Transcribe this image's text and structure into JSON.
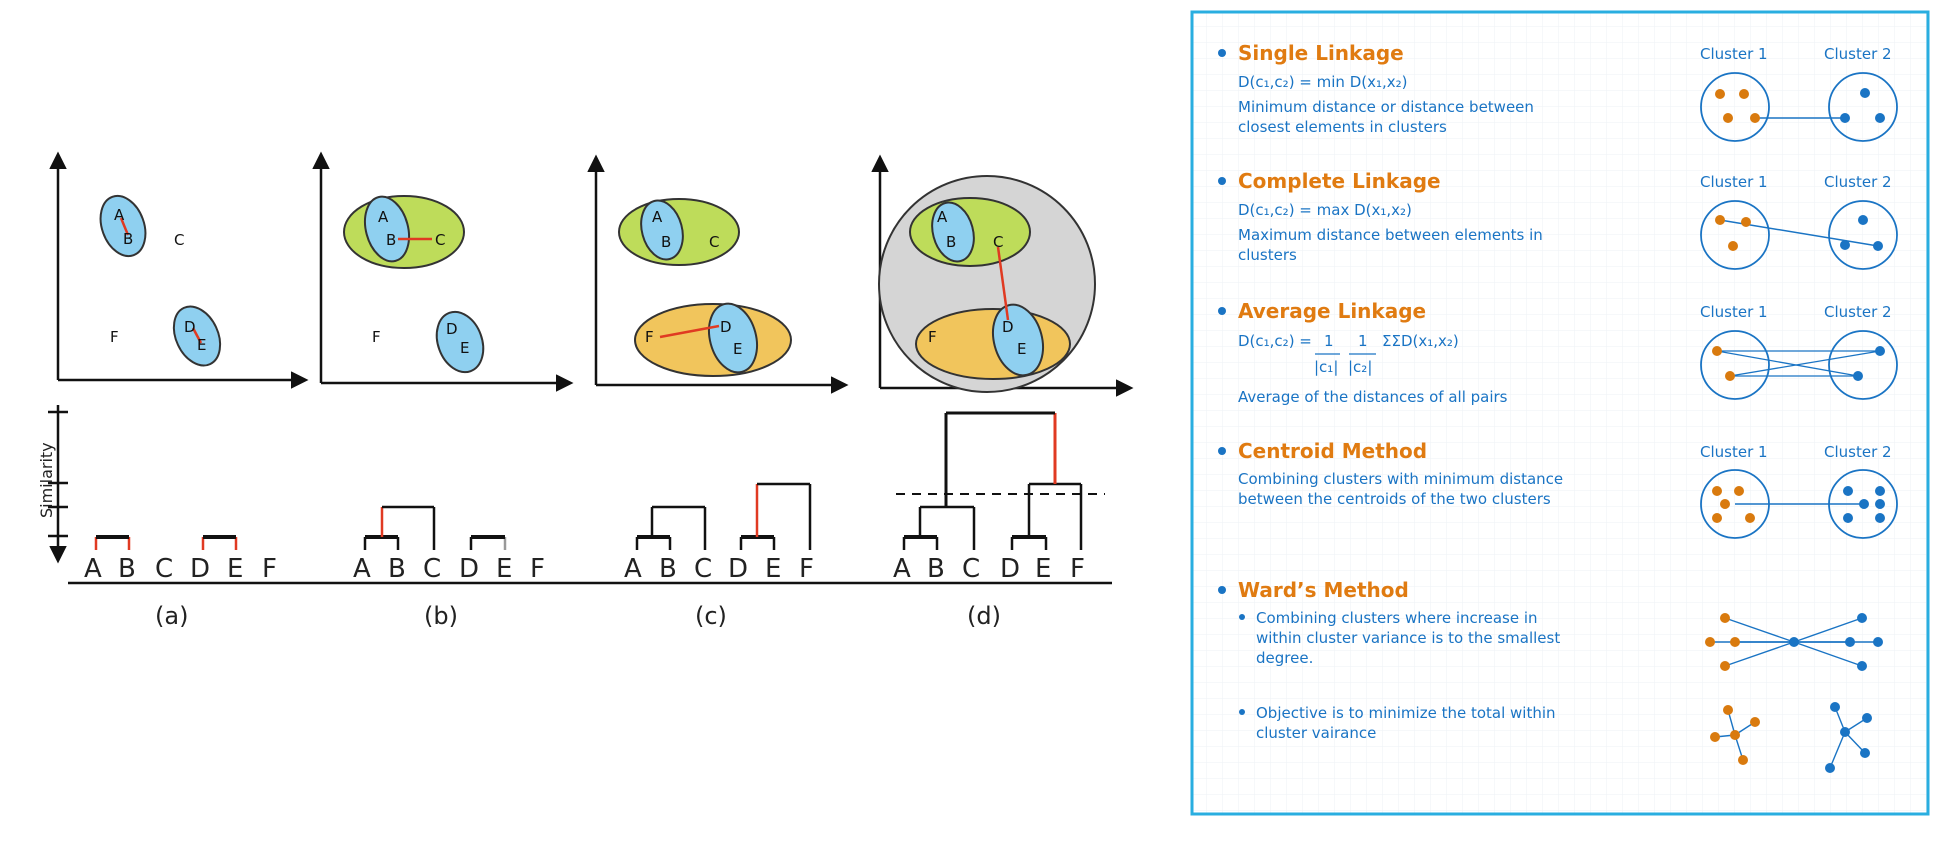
{
  "left": {
    "panels": [
      {
        "label": "(a)",
        "points": {
          "A": "A",
          "B": "B",
          "C": "C",
          "D": "D",
          "E": "E",
          "F": "F"
        }
      },
      {
        "label": "(b)",
        "points": {
          "A": "A",
          "B": "B",
          "C": "C",
          "D": "D",
          "E": "E",
          "F": "F"
        }
      },
      {
        "label": "(c)",
        "points": {
          "A": "A",
          "B": "B",
          "C": "C",
          "D": "D",
          "E": "E",
          "F": "F"
        }
      },
      {
        "label": "(d)",
        "points": {
          "A": "A",
          "B": "B",
          "C": "C",
          "D": "D",
          "E": "E",
          "F": "F"
        }
      }
    ],
    "dendrogram": {
      "y_label": "Similarity",
      "leaves": [
        "A",
        "B",
        "C",
        "D",
        "E",
        "F"
      ]
    }
  },
  "right": {
    "colors": {
      "accent": "#e07b11",
      "text": "#1a74c4",
      "border": "#29aee0",
      "orange_dot": "#d97a0e",
      "blue_dot": "#1a74c4"
    },
    "cluster_labels": {
      "c1": "Cluster 1",
      "c2": "Cluster 2"
    },
    "methods": [
      {
        "title": "Single Linkage",
        "formula": "D(c₁,c₂) = min D(x₁,x₂)",
        "desc": [
          "Minimum distance or distance between",
          "closest elements in clusters"
        ]
      },
      {
        "title": "Complete Linkage",
        "formula": "D(c₁,c₂) = max D(x₁,x₂)",
        "desc": [
          "Maximum distance between elements in",
          "clusters"
        ]
      },
      {
        "title": "Average Linkage",
        "formula_prefix": "D(c₁,c₂) =",
        "frac1_num": "1",
        "frac1_den": "|c₁|",
        "frac2_num": "1",
        "frac2_den": "|c₂|",
        "formula_sum": "ΣΣD(x₁,x₂)",
        "desc": [
          "Average of the distances of all pairs"
        ]
      },
      {
        "title": "Centroid Method",
        "desc": [
          "Combining clusters with minimum distance",
          "between the centroids of the two clusters"
        ]
      },
      {
        "title": "Ward’s Method",
        "sub1": [
          "Combining clusters where increase in",
          "within cluster variance is to the smallest",
          "degree."
        ],
        "sub2": [
          "Objective is to minimize the total within",
          "cluster vairance"
        ]
      }
    ]
  }
}
